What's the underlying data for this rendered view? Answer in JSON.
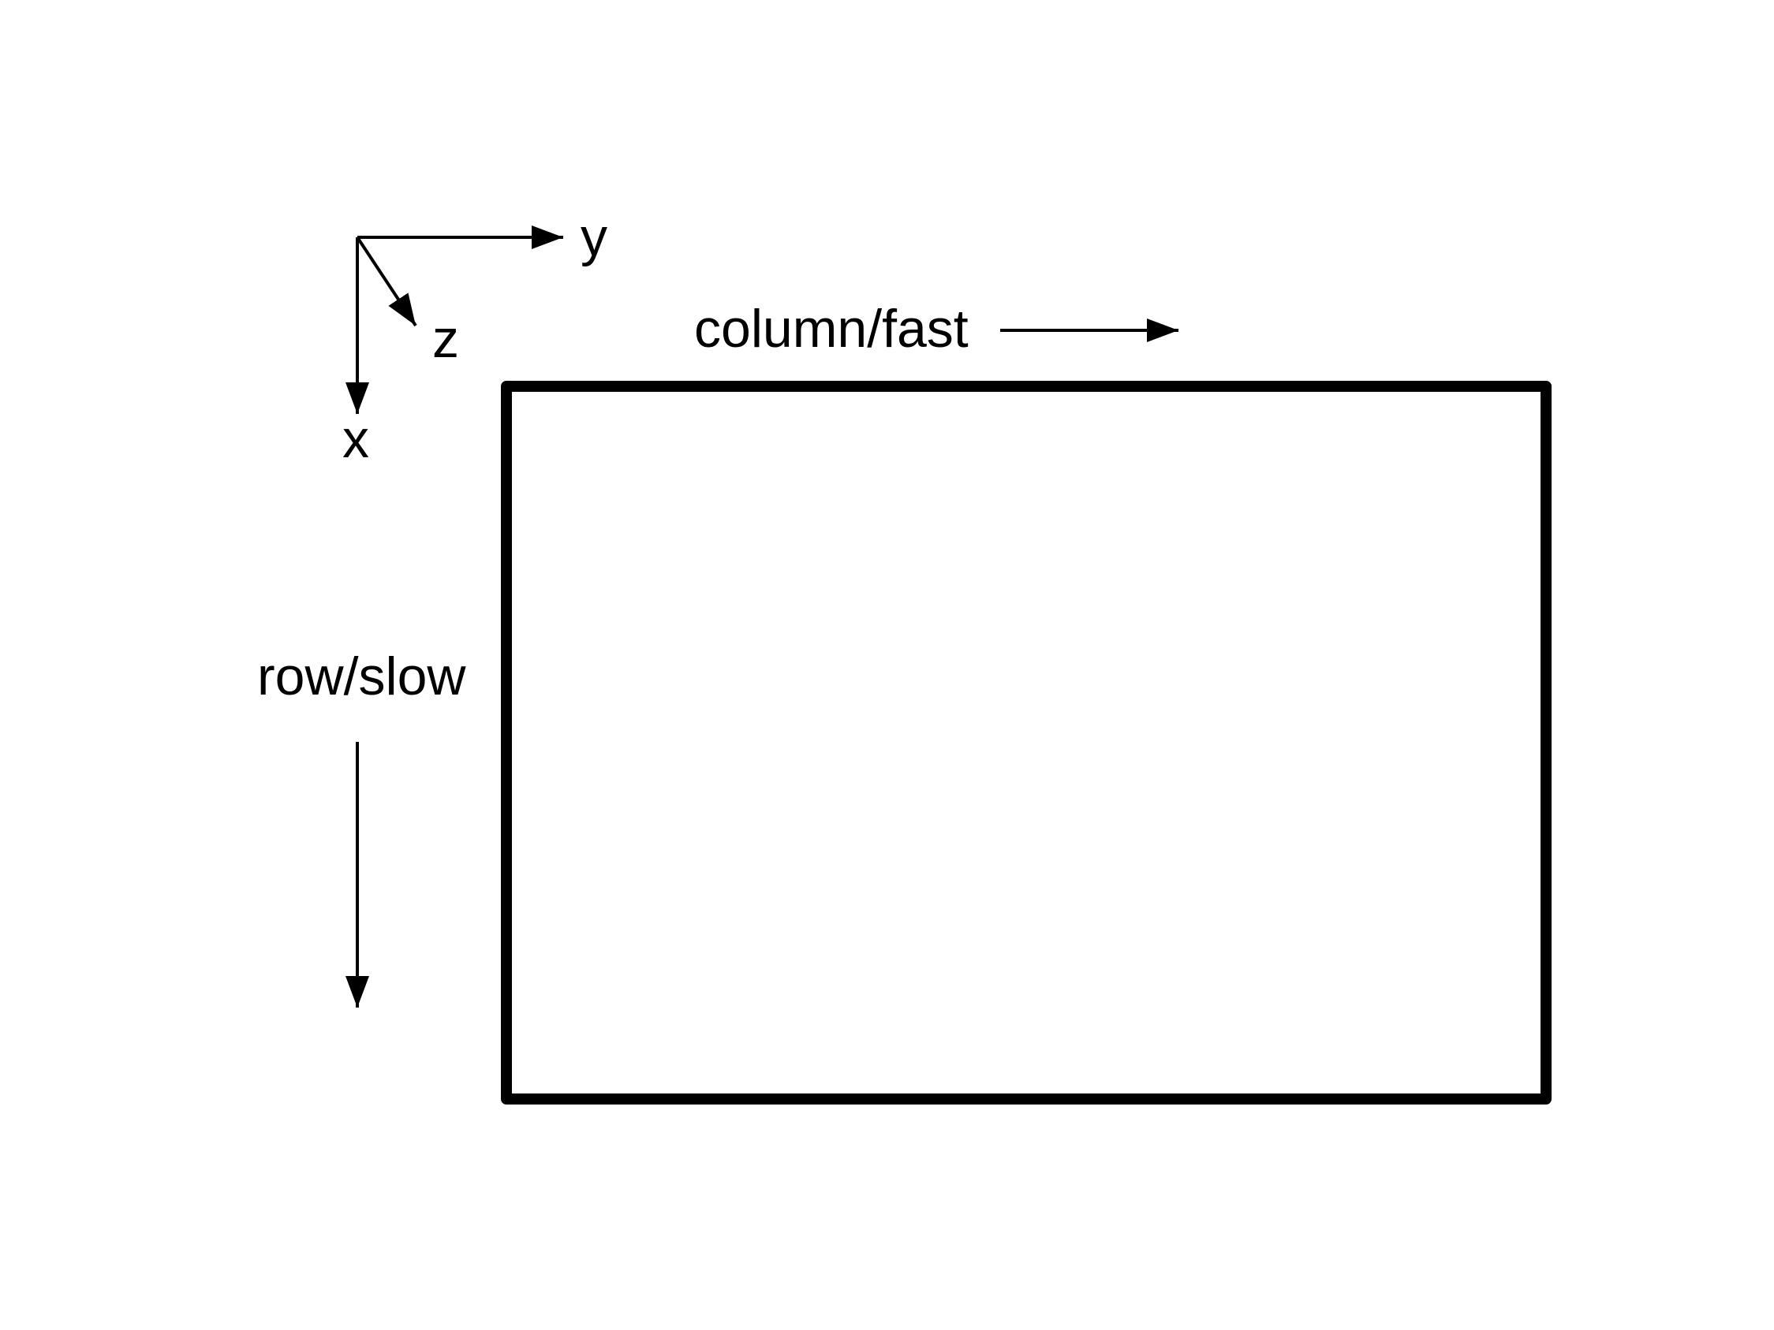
{
  "axes": {
    "x_label": "x",
    "y_label": "y",
    "z_label": "z"
  },
  "directions": {
    "column_label": "column/fast",
    "row_label": "row/slow"
  },
  "colors": {
    "stroke": "#000000",
    "background": "#ffffff"
  }
}
